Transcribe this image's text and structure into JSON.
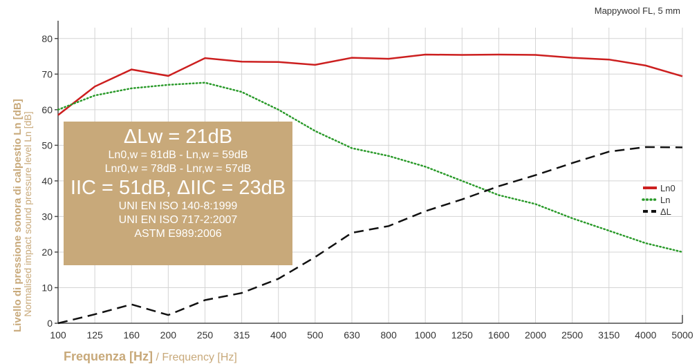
{
  "chart_data": {
    "type": "line",
    "title": "Mappywool FL, 5 mm",
    "xlabel_bold": "Frequenza [Hz]",
    "xlabel_rest": " / Frequency [Hz]",
    "ylabel_bold": "Livello di pressione sonora di calpestio Ln [dB]",
    "ylabel_sub": "Normalised impact sound pressure level Ln [dB]",
    "categories": [
      "100",
      "125",
      "160",
      "200",
      "250",
      "315",
      "400",
      "500",
      "630",
      "800",
      "1000",
      "1250",
      "1600",
      "2000",
      "2500",
      "3150",
      "4000",
      "5000"
    ],
    "y_ticks": [
      "0",
      "10",
      "20",
      "30",
      "40",
      "50",
      "60",
      "70",
      "80"
    ],
    "ylim": [
      0,
      85
    ],
    "grid": true,
    "legend_position": "right",
    "series": [
      {
        "name": "Ln0",
        "color": "#cc1f1f",
        "style": "solid",
        "values": [
          58.5,
          66.5,
          71.3,
          69.5,
          74.5,
          73.5,
          73.4,
          72.6,
          74.6,
          74.3,
          75.5,
          75.4,
          75.5,
          75.4,
          74.6,
          74.1,
          72.4,
          69.4
        ]
      },
      {
        "name": "Ln",
        "color": "#2a9a2a",
        "style": "dotted",
        "values": [
          60.0,
          64.0,
          66.0,
          67.0,
          67.6,
          65.0,
          60.0,
          54.0,
          49.2,
          47.0,
          44.0,
          40.0,
          36.0,
          33.5,
          29.5,
          26.0,
          22.5,
          20.0
        ]
      },
      {
        "name": "ΔL",
        "color": "#111111",
        "style": "dashed",
        "values": [
          0,
          2.5,
          5.3,
          2.3,
          6.5,
          8.5,
          12.5,
          18.6,
          25.4,
          27.3,
          31.5,
          34.8,
          38.5,
          41.6,
          45.0,
          48.2,
          49.5,
          49.4
        ]
      }
    ]
  },
  "info_box": {
    "line1": "ΔLw = 21dB",
    "line2": "Ln0,w = 81dB - Ln,w = 59dB",
    "line3": "Lnr0,w = 78dB - Lnr,w = 57dB",
    "line4": "IIC = 51dB, ΔIIC = 23dB",
    "line5": "UNI EN ISO 140-8:1999",
    "line6": "UNI EN ISO 717-2:2007",
    "line7": "ASTM E989:2006",
    "background_color": "#c8a97a"
  },
  "colors": {
    "axis_label_gold": "#c8a97a",
    "grid": "#d4d4d4",
    "axis": "#4a4a4a"
  }
}
